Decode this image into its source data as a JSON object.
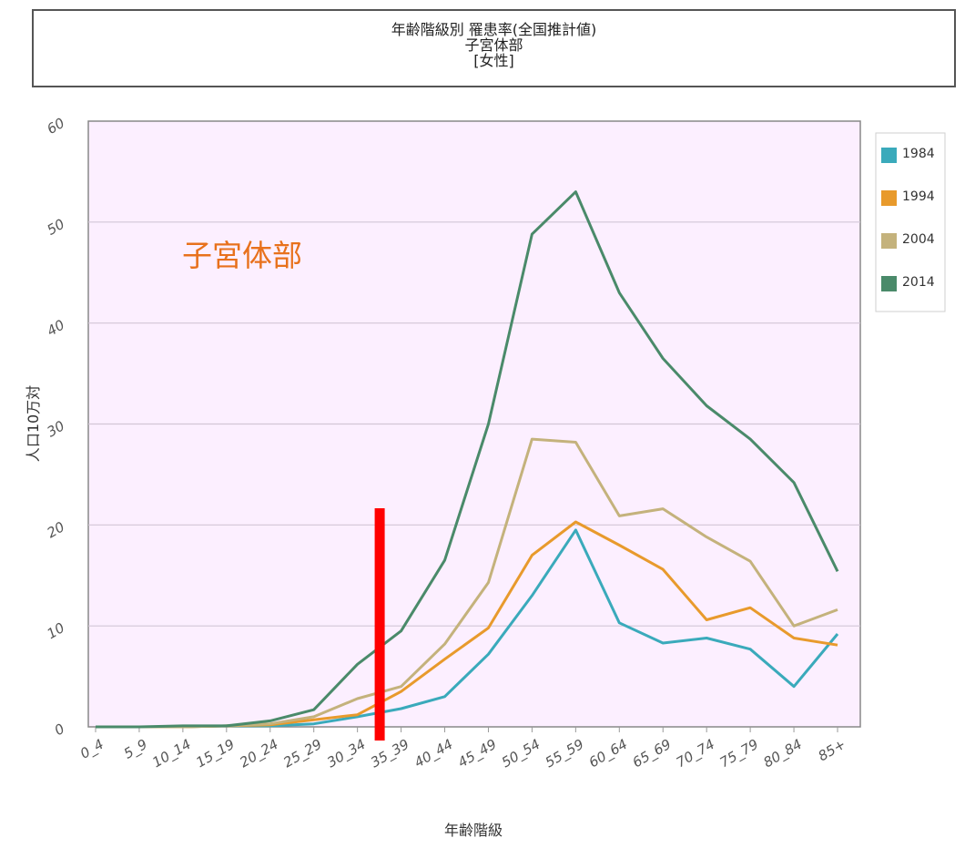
{
  "title": {
    "line1": "年齢階級別 罹患率(全国推計値)",
    "line2": "子宮体部",
    "line3": "[女性]"
  },
  "colors": {
    "plot_bg": "#fcefff",
    "grid": "#d2c6d6",
    "marker": "#ff0000",
    "annotation": "#e8711c"
  },
  "chart_data": {
    "type": "line",
    "title": "年齢階級別 罹患率(全国推計値) 子宮体部 [女性]",
    "xlabel": "年齢階級",
    "ylabel": "人口10万対",
    "ylim": [
      0,
      60
    ],
    "yticks": [
      "0",
      "10",
      "20",
      "30",
      "40",
      "50",
      "60"
    ],
    "grid": true,
    "legend_position": "right",
    "annotation": "子宮体部",
    "categories": [
      "0_4",
      "5_9",
      "10_14",
      "15_19",
      "20_24",
      "25_29",
      "30_34",
      "35_39",
      "40_44",
      "45_49",
      "50_54",
      "55_59",
      "60_64",
      "65_69",
      "70_74",
      "75_79",
      "80_84",
      "85+"
    ],
    "marker_category": "35_39",
    "series": [
      {
        "name": "1984",
        "color": "#3aaabb",
        "values": [
          0.0,
          0.0,
          0.0,
          0.1,
          0.1,
          0.3,
          1.0,
          1.8,
          3.0,
          7.2,
          13.0,
          19.5,
          10.3,
          8.3,
          8.8,
          7.7,
          4.0,
          9.2
        ]
      },
      {
        "name": "1994",
        "color": "#e89a2c",
        "values": [
          0.0,
          0.0,
          0.0,
          0.1,
          0.2,
          0.7,
          1.2,
          3.5,
          6.7,
          9.8,
          17.0,
          20.3,
          18.0,
          15.6,
          10.6,
          11.8,
          8.8,
          8.1
        ]
      },
      {
        "name": "2004",
        "color": "#c4b27c",
        "values": [
          0.0,
          0.0,
          0.0,
          0.1,
          0.3,
          1.0,
          2.8,
          4.0,
          8.2,
          14.3,
          28.5,
          28.2,
          20.9,
          21.6,
          18.8,
          16.4,
          10.0,
          11.6
        ]
      },
      {
        "name": "2014",
        "color": "#4a8a6a",
        "values": [
          0.0,
          0.0,
          0.1,
          0.1,
          0.6,
          1.7,
          6.2,
          9.5,
          16.5,
          30.0,
          48.8,
          53.0,
          43.0,
          36.5,
          31.8,
          28.5,
          24.2,
          15.4
        ]
      }
    ]
  }
}
